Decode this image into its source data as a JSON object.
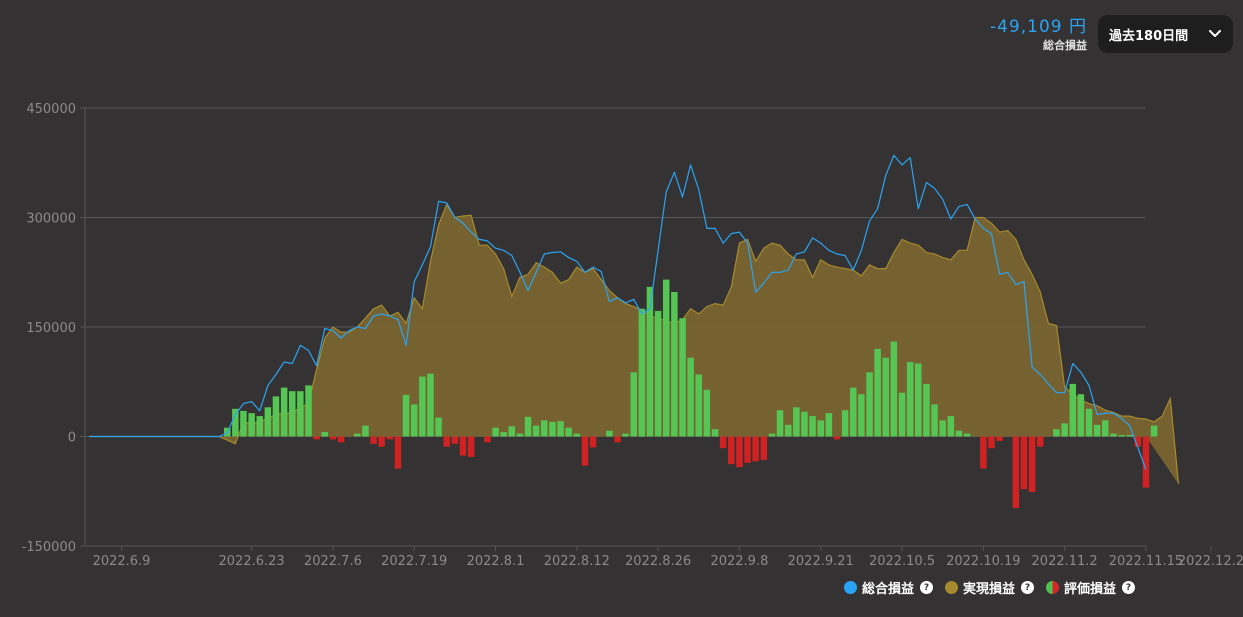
{
  "summary": {
    "value": "-49,109 円",
    "label": "総合損益"
  },
  "period": {
    "label": "過去180日間",
    "icon": "chevron-down-icon"
  },
  "legend": [
    {
      "label": "総合損益",
      "color": "#2aa4f4",
      "help": "?"
    },
    {
      "label": "実現損益",
      "color": "#a78a2e",
      "help": "?"
    },
    {
      "label": "評価損益",
      "colors": [
        "#4fc24f",
        "#d62828"
      ],
      "help": "?"
    }
  ],
  "colors": {
    "total": "#2aa4f4",
    "realized_fill": "#7a6432",
    "realized_line": "#a78a2e",
    "pos": "#55c553",
    "neg": "#d02222",
    "grid": "#555",
    "axis_text": "#8a8a8a"
  },
  "chart_data": {
    "type": "bar+area+line",
    "ylim": [
      -150000,
      450000
    ],
    "yticks": [
      "450000",
      "300000",
      "150000",
      "0",
      "-150000"
    ],
    "ytick_values": [
      450000,
      300000,
      150000,
      0,
      -150000
    ],
    "xticks": [
      "2022.6.9",
      "2022.6.23",
      "2022.7.6",
      "2022.7.19",
      "2022.8.1",
      "2022.8.12",
      "2022.8.26",
      "2022.9.8",
      "2022.9.21",
      "2022.10.5",
      "2022.10.19",
      "2022.11.2",
      "2022.11.15",
      "2022.12.2"
    ],
    "xtick_index": [
      4,
      20,
      30,
      40,
      50,
      60,
      70,
      80,
      90,
      100,
      110,
      120,
      130,
      138
    ],
    "series": [
      {
        "name": "総合損益",
        "type": "line",
        "values": [
          0,
          0,
          0,
          0,
          0,
          0,
          0,
          0,
          0,
          0,
          0,
          0,
          0,
          0,
          0,
          0,
          0,
          5000,
          30000,
          45000,
          48000,
          35000,
          70000,
          85000,
          102000,
          100000,
          125000,
          118000,
          97000,
          148000,
          145000,
          135000,
          145000,
          150000,
          148000,
          165000,
          168000,
          165000,
          160000,
          125000,
          212000,
          235000,
          260000,
          322000,
          320000,
          300000,
          292000,
          280000,
          270000,
          268000,
          258000,
          255000,
          248000,
          225000,
          200000,
          225000,
          250000,
          252000,
          253000,
          245000,
          240000,
          225000,
          232000,
          226000,
          185000,
          190000,
          183000,
          188000,
          168000,
          175000,
          255000,
          335000,
          362000,
          328000,
          372000,
          338000,
          285000,
          285000,
          265000,
          278000,
          280000,
          265000,
          198000,
          210000,
          225000,
          225000,
          228000,
          250000,
          253000,
          272000,
          265000,
          255000,
          250000,
          248000,
          228000,
          255000,
          295000,
          312000,
          358000,
          385000,
          372000,
          382000,
          312000,
          348000,
          340000,
          325000,
          298000,
          315000,
          318000,
          298000,
          285000,
          278000,
          222000,
          225000,
          208000,
          212000,
          95000,
          85000,
          72000,
          60000,
          60000,
          100000,
          88000,
          70000,
          30000,
          32000,
          32000,
          25000,
          15000,
          -15000,
          -45000
        ]
      },
      {
        "name": "実現損益",
        "type": "area",
        "values": [
          0,
          0,
          0,
          0,
          0,
          0,
          0,
          0,
          0,
          0,
          0,
          0,
          0,
          0,
          0,
          0,
          0,
          -5000,
          -10000,
          20000,
          18000,
          20000,
          25000,
          30000,
          32000,
          32000,
          40000,
          45000,
          92000,
          135000,
          150000,
          143000,
          143000,
          150000,
          162000,
          175000,
          180000,
          165000,
          170000,
          155000,
          190000,
          175000,
          240000,
          290000,
          318000,
          300000,
          302000,
          303000,
          262000,
          262000,
          250000,
          230000,
          192000,
          218000,
          222000,
          238000,
          232000,
          225000,
          210000,
          215000,
          232000,
          225000,
          230000,
          215000,
          200000,
          190000,
          182000,
          178000,
          173000,
          165000,
          162000,
          158000,
          155000,
          160000,
          175000,
          168000,
          178000,
          182000,
          180000,
          205000,
          265000,
          270000,
          240000,
          258000,
          265000,
          262000,
          250000,
          242000,
          242000,
          218000,
          242000,
          235000,
          232000,
          230000,
          228000,
          220000,
          235000,
          230000,
          230000,
          252000,
          270000,
          265000,
          262000,
          252000,
          250000,
          245000,
          242000,
          255000,
          255000,
          300000,
          300000,
          292000,
          280000,
          282000,
          270000,
          242000,
          222000,
          198000,
          155000,
          152000,
          68000,
          58000,
          50000,
          45000,
          42000,
          36000,
          33000,
          28000,
          28000,
          25000,
          24000,
          20000,
          28000,
          52000,
          -65000
        ]
      },
      {
        "name": "評価損益",
        "type": "bar",
        "values": [
          0,
          0,
          0,
          0,
          0,
          0,
          0,
          0,
          0,
          0,
          0,
          0,
          0,
          0,
          0,
          0,
          0,
          12000,
          38000,
          35000,
          32000,
          28000,
          40000,
          55000,
          67000,
          62000,
          62000,
          70000,
          -4000,
          6000,
          -4000,
          -8000,
          0,
          4000,
          15000,
          -10000,
          -14000,
          -4000,
          -44000,
          57000,
          44000,
          82000,
          86000,
          26000,
          -14000,
          -10000,
          -26000,
          -28000,
          0,
          -8000,
          12000,
          6000,
          14000,
          4000,
          27000,
          15000,
          22000,
          20000,
          21000,
          12000,
          4000,
          -40000,
          -15000,
          0,
          8000,
          -8000,
          4000,
          88000,
          175000,
          205000,
          172000,
          215000,
          198000,
          162000,
          108000,
          85000,
          64000,
          10000,
          -16000,
          -38000,
          -42000,
          -36000,
          -34000,
          -32000,
          4000,
          36000,
          16000,
          40000,
          34000,
          28000,
          22000,
          32000,
          -4000,
          36000,
          67000,
          58000,
          88000,
          120000,
          108000,
          130000,
          60000,
          102000,
          100000,
          72000,
          44000,
          22000,
          28000,
          8000,
          4000,
          0,
          -44000,
          -16000,
          -6000,
          0,
          -98000,
          -72000,
          -76000,
          -14000,
          0,
          10000,
          18000,
          72000,
          58000,
          38000,
          16000,
          22000,
          4000,
          2000,
          2000,
          -14000,
          -70000,
          15000
        ]
      }
    ]
  }
}
